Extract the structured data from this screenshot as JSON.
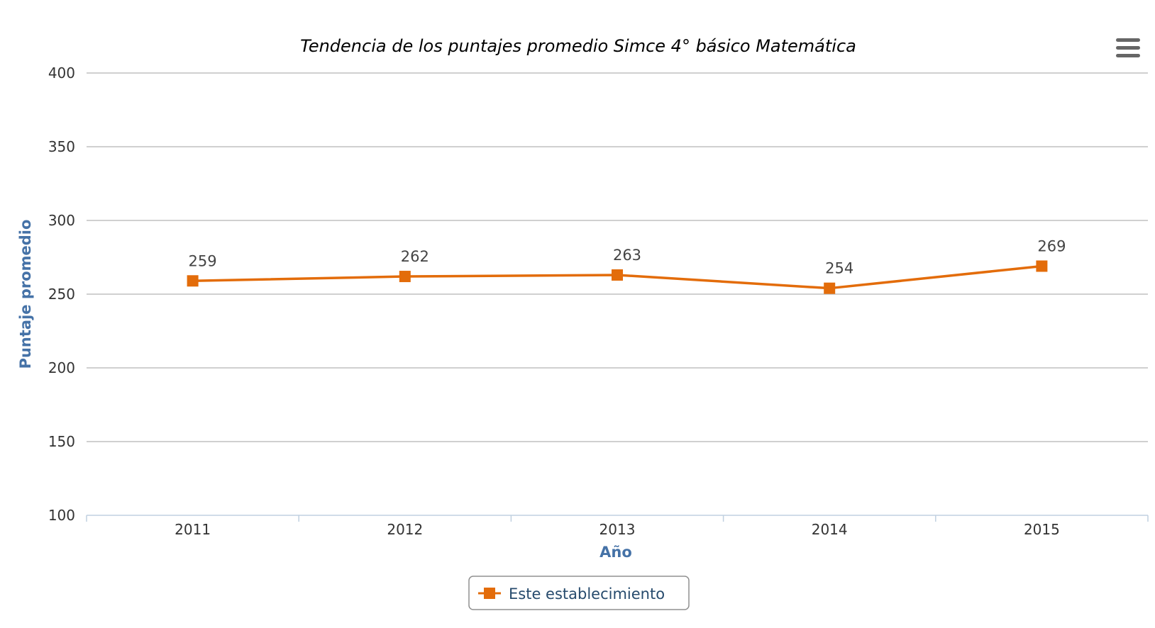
{
  "colors": {
    "series": "#e36c0a",
    "axis_title": "#4572a7",
    "legend_text": "#274b6d",
    "grid": "#c0c0c0"
  },
  "menu": {
    "icon": "hamburger-menu-icon"
  },
  "chart_data": {
    "type": "line",
    "title": "Tendencia de los puntajes promedio Simce 4° básico Matemática",
    "xlabel": "Año",
    "ylabel": "Puntaje promedio",
    "categories": [
      "2011",
      "2012",
      "2013",
      "2014",
      "2015"
    ],
    "yticks": [
      "100",
      "150",
      "200",
      "250",
      "300",
      "350",
      "400"
    ],
    "ylim": [
      100,
      400
    ],
    "grid": true,
    "legend_position": "bottom-center",
    "marker": "square",
    "series": [
      {
        "name": "Este establecimiento",
        "values": [
          259,
          262,
          263,
          254,
          269
        ],
        "labels": [
          "259",
          "262",
          "263",
          "254",
          "269"
        ]
      }
    ]
  }
}
